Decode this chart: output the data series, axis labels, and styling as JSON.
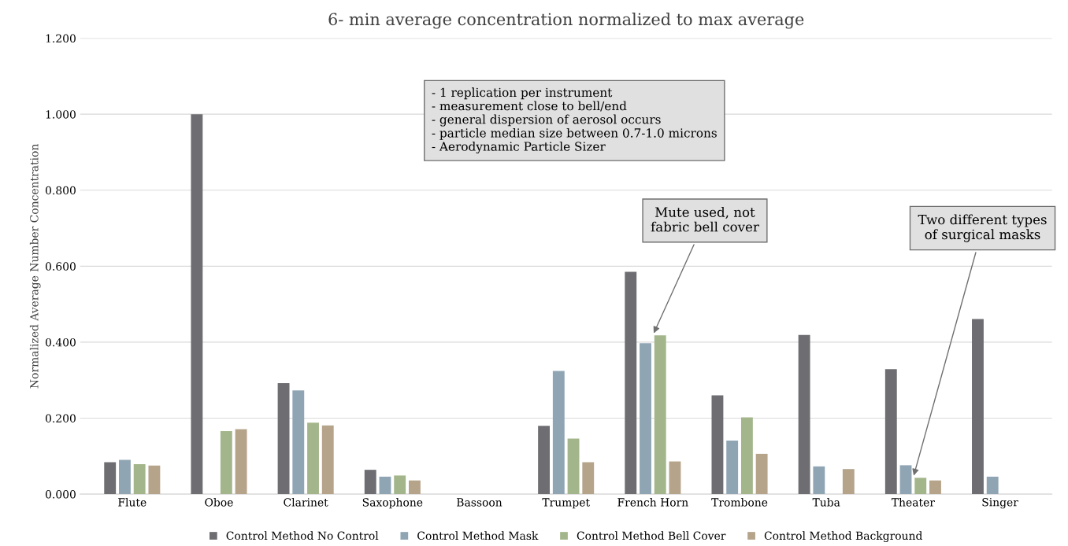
{
  "chart_data": {
    "type": "bar",
    "title": "6- min average concentration normalized to max average",
    "ylabel": "Normalized Average Number Concentration",
    "categories": [
      "Flute",
      "Oboe",
      "Clarinet",
      "Saxophone",
      "Bassoon",
      "Trumpet",
      "French Horn",
      "Trombone",
      "Tuba",
      "Theater",
      "Singer"
    ],
    "series": [
      {
        "name": "Control Method No Control",
        "color": "#6d6d72",
        "values": [
          0.084,
          1.0,
          0.292,
          0.064,
          null,
          0.18,
          0.585,
          0.26,
          0.419,
          0.329,
          0.461
        ]
      },
      {
        "name": "Control Method Mask",
        "color": "#8fa5b4",
        "values": [
          0.09,
          null,
          0.273,
          0.046,
          null,
          0.324,
          0.397,
          0.141,
          0.073,
          0.076,
          0.046
        ]
      },
      {
        "name": "Control Method Bell Cover",
        "color": "#a3b58a",
        "values": [
          0.079,
          0.166,
          0.188,
          0.049,
          null,
          0.146,
          0.418,
          0.202,
          null,
          0.043,
          null
        ]
      },
      {
        "name": "Control Method Background",
        "color": "#b5a38a",
        "values": [
          0.075,
          0.171,
          0.181,
          0.036,
          null,
          0.084,
          0.086,
          0.106,
          0.066,
          0.036,
          null
        ]
      }
    ],
    "ylim": [
      0,
      1.2
    ],
    "yticks": [
      {
        "value": 0,
        "label": "0.000"
      },
      {
        "value": 0.2,
        "label": "0.200"
      },
      {
        "value": 0.4,
        "label": "0.400"
      },
      {
        "value": 0.6,
        "label": "0.600"
      },
      {
        "value": 0.8,
        "label": "0.800"
      },
      {
        "value": 1.0,
        "label": "1.000"
      },
      {
        "value": 1.2,
        "label": "1.200"
      }
    ],
    "grid": "y",
    "legend": "bottom",
    "annotations": [
      "- 1 replication per instrument\n- measurement close to bell/end\n- general dispersion of aerosol occurs\n- particle median size between 0.7-1.0 microns\n- Aerodynamic Particle Sizer",
      {
        "text": "Mute used, not\nfabric bell cover",
        "x": "French Horn",
        "y": 0.418
      },
      {
        "text": "Two different types\nof surgical masks",
        "x": "Theater",
        "y": 0.043
      }
    ]
  }
}
